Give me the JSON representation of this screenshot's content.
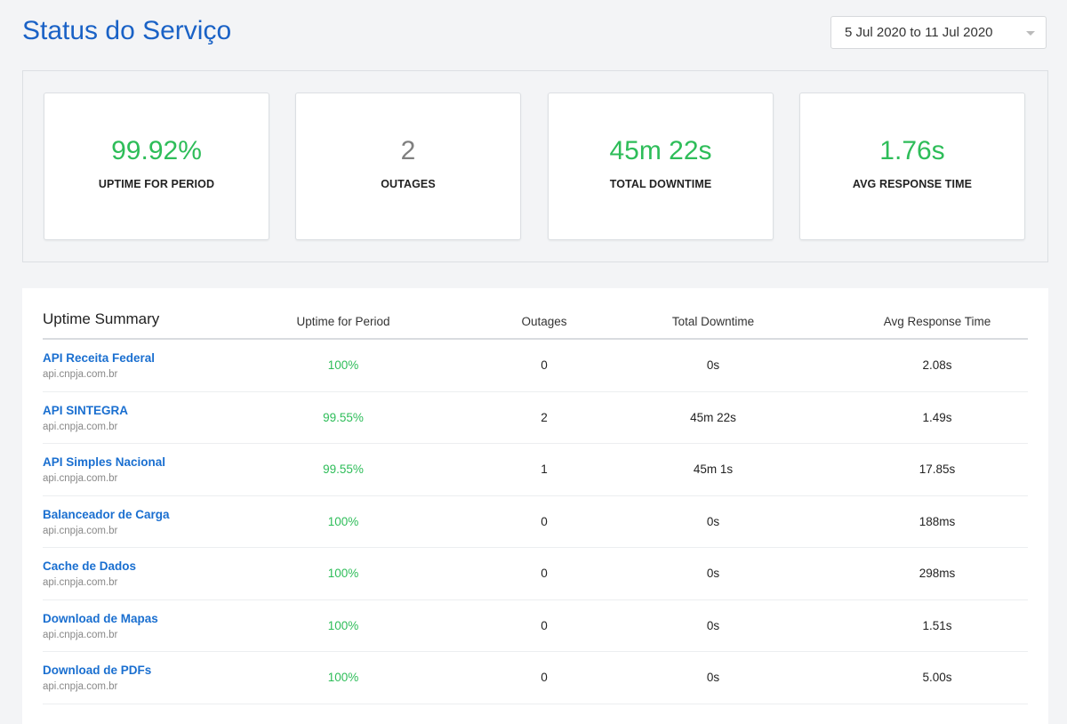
{
  "header": {
    "title": "Status do Serviço",
    "date_range": "5 Jul 2020 to 11 Jul 2020"
  },
  "stats": [
    {
      "value": "99.92%",
      "label": "UPTIME FOR PERIOD",
      "color": "#2ebd59"
    },
    {
      "value": "2",
      "label": "OUTAGES",
      "color": "#7f7f7f"
    },
    {
      "value": "45m 22s",
      "label": "TOTAL DOWNTIME",
      "color": "#2ebd59"
    },
    {
      "value": "1.76s",
      "label": "AVG RESPONSE TIME",
      "color": "#2ebd59"
    }
  ],
  "summary": {
    "title": "Uptime Summary",
    "columns": [
      "Uptime for Period",
      "Outages",
      "Total Downtime",
      "Avg Response Time"
    ],
    "rows": [
      {
        "name": "API Receita Federal",
        "host": "api.cnpja.com.br",
        "uptime": "100%",
        "outages": "0",
        "downtime": "0s",
        "avg": "2.08s"
      },
      {
        "name": "API SINTEGRA",
        "host": "api.cnpja.com.br",
        "uptime": "99.55%",
        "outages": "2",
        "downtime": "45m 22s",
        "avg": "1.49s"
      },
      {
        "name": "API Simples Nacional",
        "host": "api.cnpja.com.br",
        "uptime": "99.55%",
        "outages": "1",
        "downtime": "45m 1s",
        "avg": "17.85s"
      },
      {
        "name": "Balanceador de Carga",
        "host": "api.cnpja.com.br",
        "uptime": "100%",
        "outages": "0",
        "downtime": "0s",
        "avg": "188ms"
      },
      {
        "name": "Cache de Dados",
        "host": "api.cnpja.com.br",
        "uptime": "100%",
        "outages": "0",
        "downtime": "0s",
        "avg": "298ms"
      },
      {
        "name": "Download de Mapas",
        "host": "api.cnpja.com.br",
        "uptime": "100%",
        "outages": "0",
        "downtime": "0s",
        "avg": "1.51s"
      },
      {
        "name": "Download de PDFs",
        "host": "api.cnpja.com.br",
        "uptime": "100%",
        "outages": "0",
        "downtime": "0s",
        "avg": "5.00s"
      }
    ]
  }
}
